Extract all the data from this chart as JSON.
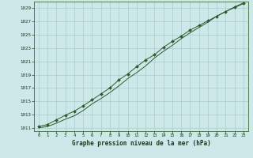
{
  "bg_color": "#cce8e8",
  "grid_color": "#aacccc",
  "line_color": "#2d5a2d",
  "xlabel": "Graphe pression niveau de la mer (hPa)",
  "xlim": [
    -0.5,
    23.5
  ],
  "ylim": [
    1010.5,
    1030.0
  ],
  "yticks": [
    1011,
    1013,
    1015,
    1017,
    1019,
    1021,
    1023,
    1025,
    1027,
    1029
  ],
  "xticks": [
    0,
    1,
    2,
    3,
    4,
    5,
    6,
    7,
    8,
    9,
    10,
    11,
    12,
    13,
    14,
    15,
    16,
    17,
    18,
    19,
    20,
    21,
    22,
    23
  ],
  "hours": [
    0,
    1,
    2,
    3,
    4,
    5,
    6,
    7,
    8,
    9,
    10,
    11,
    12,
    13,
    14,
    15,
    16,
    17,
    18,
    19,
    20,
    21,
    22,
    23
  ],
  "pressure_marked": [
    1011.2,
    1011.5,
    1012.2,
    1012.9,
    1013.5,
    1014.3,
    1015.2,
    1016.1,
    1017.0,
    1018.2,
    1019.1,
    1020.2,
    1021.2,
    1022.0,
    1023.1,
    1024.0,
    1024.8,
    1025.7,
    1026.4,
    1027.1,
    1027.8,
    1028.5,
    1029.2,
    1029.8
  ],
  "pressure_smooth": [
    1011.0,
    1011.2,
    1011.7,
    1012.3,
    1012.8,
    1013.6,
    1014.6,
    1015.4,
    1016.3,
    1017.3,
    1018.4,
    1019.3,
    1020.3,
    1021.5,
    1022.5,
    1023.4,
    1024.4,
    1025.3,
    1026.1,
    1026.9,
    1027.8,
    1028.5,
    1029.1,
    1029.7
  ]
}
